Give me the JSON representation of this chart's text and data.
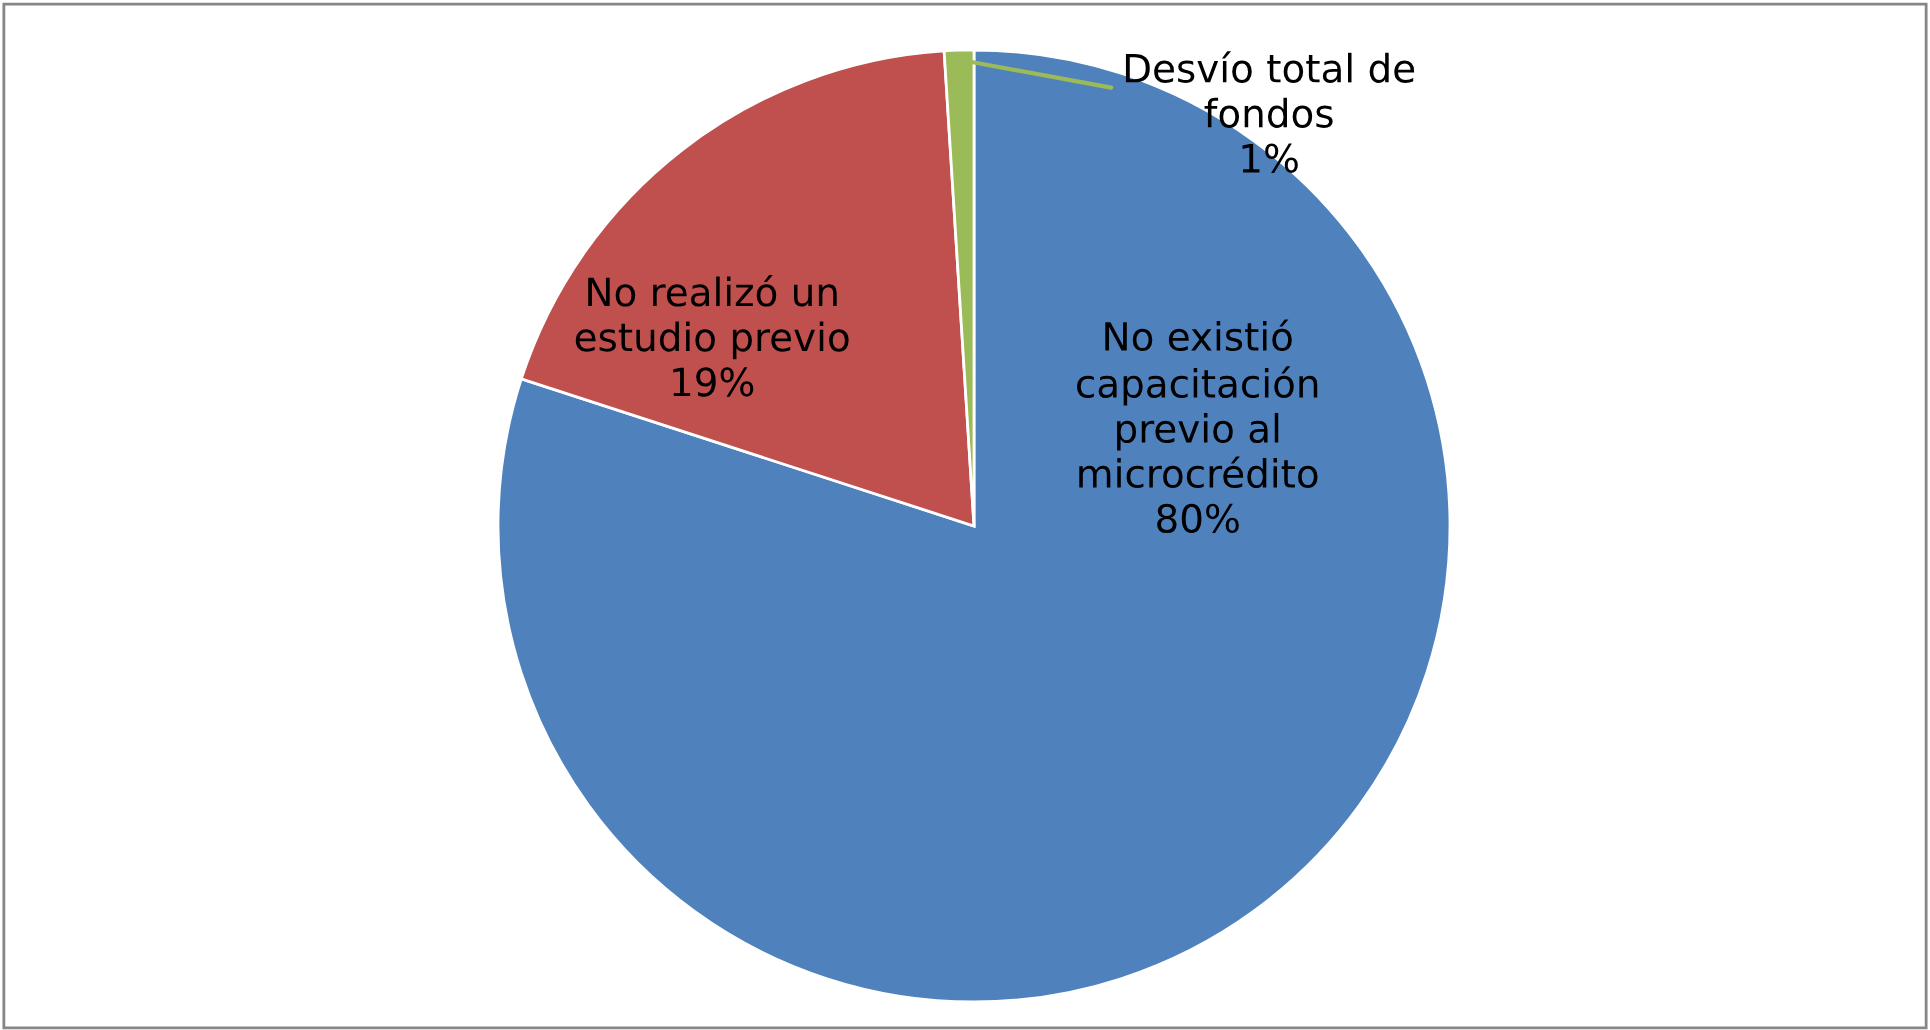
{
  "chart_data": {
    "type": "pie",
    "categories": [
      "No existió\ncapacitación\nprevio al\nmicrocrédito",
      "No realizó un\nestudio previo",
      "Desvío total de\nfondos"
    ],
    "values": [
      80,
      19,
      1
    ],
    "value_labels": [
      "80%",
      "19%",
      "1%"
    ],
    "colors": [
      "#4f81bd",
      "#c0504d",
      "#9bbb59"
    ]
  }
}
